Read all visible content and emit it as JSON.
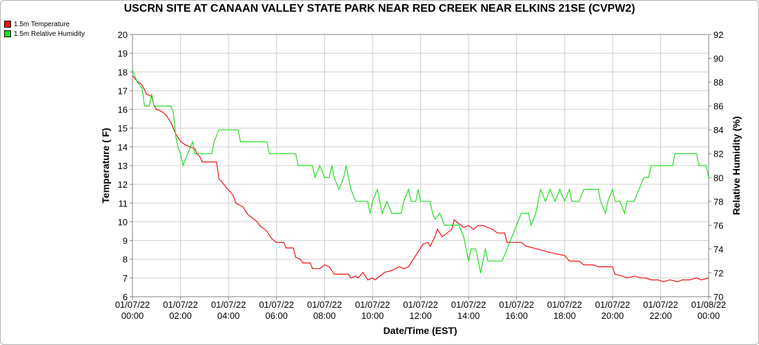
{
  "title": "USCRN SITE AT CANAAN VALLEY STATE PARK NEAR RED CREEK NEAR ELKINS 21SE (CVPW2)",
  "chart_data": {
    "type": "line",
    "title": "USCRN SITE AT CANAAN VALLEY STATE PARK NEAR RED CREEK NEAR ELKINS 21SE (CVPW2)",
    "xlabel": "Date/Time (EST)",
    "ylabel": "Temperature ( F)",
    "y2label": "Relative Humidity (%)",
    "ylim": [
      6,
      20
    ],
    "y2lim": [
      70,
      92
    ],
    "xlim_hours": [
      0,
      24
    ],
    "grid": true,
    "legend_position": "top-left",
    "x_ticks": [
      {
        "date": "01/07/22",
        "time": "00:00"
      },
      {
        "date": "01/07/22",
        "time": "02:00"
      },
      {
        "date": "01/07/22",
        "time": "04:00"
      },
      {
        "date": "01/07/22",
        "time": "06:00"
      },
      {
        "date": "01/07/22",
        "time": "08:00"
      },
      {
        "date": "01/07/22",
        "time": "10:00"
      },
      {
        "date": "01/07/22",
        "time": "12:00"
      },
      {
        "date": "01/07/22",
        "time": "14:00"
      },
      {
        "date": "01/07/22",
        "time": "16:00"
      },
      {
        "date": "01/07/22",
        "time": "18:00"
      },
      {
        "date": "01/07/22",
        "time": "20:00"
      },
      {
        "date": "01/07/22",
        "time": "22:00"
      },
      {
        "date": "01/08/22",
        "time": "00:00"
      }
    ],
    "y_ticks": [
      6,
      7,
      8,
      9,
      10,
      11,
      12,
      13,
      14,
      15,
      16,
      17,
      18,
      19,
      20
    ],
    "y2_ticks": [
      70,
      72,
      74,
      76,
      78,
      80,
      82,
      84,
      86,
      88,
      90,
      92
    ],
    "series": [
      {
        "name": "1.5m Temperature",
        "color": "#ee1111",
        "axis": "left",
        "points": [
          [
            0.0,
            17.8
          ],
          [
            0.2,
            17.5
          ],
          [
            0.4,
            17.3
          ],
          [
            0.6,
            16.8
          ],
          [
            0.8,
            16.7
          ],
          [
            0.9,
            16.2
          ],
          [
            1.0,
            16.0
          ],
          [
            1.2,
            15.9
          ],
          [
            1.4,
            15.7
          ],
          [
            1.6,
            15.3
          ],
          [
            1.8,
            14.7
          ],
          [
            2.0,
            14.3
          ],
          [
            2.2,
            14.1
          ],
          [
            2.4,
            14.0
          ],
          [
            2.6,
            13.9
          ],
          [
            2.7,
            13.6
          ],
          [
            2.8,
            13.5
          ],
          [
            2.9,
            13.2
          ],
          [
            3.2,
            13.2
          ],
          [
            3.5,
            13.2
          ],
          [
            3.6,
            12.3
          ],
          [
            3.8,
            12.0
          ],
          [
            4.0,
            11.7
          ],
          [
            4.2,
            11.4
          ],
          [
            4.3,
            11.0
          ],
          [
            4.6,
            10.8
          ],
          [
            4.8,
            10.4
          ],
          [
            5.0,
            10.2
          ],
          [
            5.2,
            10.0
          ],
          [
            5.3,
            9.8
          ],
          [
            5.6,
            9.5
          ],
          [
            5.8,
            9.1
          ],
          [
            6.0,
            8.9
          ],
          [
            6.3,
            8.9
          ],
          [
            6.4,
            8.6
          ],
          [
            6.7,
            8.6
          ],
          [
            6.8,
            8.1
          ],
          [
            7.0,
            8.0
          ],
          [
            7.1,
            7.8
          ],
          [
            7.4,
            7.8
          ],
          [
            7.5,
            7.5
          ],
          [
            7.8,
            7.5
          ],
          [
            7.9,
            7.6
          ],
          [
            8.0,
            7.7
          ],
          [
            8.2,
            7.6
          ],
          [
            8.4,
            7.2
          ],
          [
            8.8,
            7.2
          ],
          [
            9.0,
            7.2
          ],
          [
            9.1,
            7.0
          ],
          [
            9.3,
            7.1
          ],
          [
            9.4,
            7.0
          ],
          [
            9.6,
            7.3
          ],
          [
            9.8,
            6.9
          ],
          [
            10.0,
            7.0
          ],
          [
            10.1,
            6.9
          ],
          [
            10.3,
            7.1
          ],
          [
            10.5,
            7.3
          ],
          [
            10.8,
            7.4
          ],
          [
            11.1,
            7.6
          ],
          [
            11.3,
            7.5
          ],
          [
            11.5,
            7.6
          ],
          [
            11.7,
            8.0
          ],
          [
            11.9,
            8.4
          ],
          [
            12.1,
            8.8
          ],
          [
            12.3,
            8.9
          ],
          [
            12.4,
            8.7
          ],
          [
            12.6,
            9.2
          ],
          [
            12.7,
            9.6
          ],
          [
            12.9,
            9.2
          ],
          [
            13.1,
            9.4
          ],
          [
            13.3,
            9.6
          ],
          [
            13.4,
            10.1
          ],
          [
            13.6,
            9.9
          ],
          [
            13.8,
            9.7
          ],
          [
            14.0,
            9.8
          ],
          [
            14.2,
            9.6
          ],
          [
            14.4,
            9.8
          ],
          [
            14.6,
            9.8
          ],
          [
            14.8,
            9.7
          ],
          [
            15.0,
            9.6
          ],
          [
            15.2,
            9.4
          ],
          [
            15.5,
            9.4
          ],
          [
            15.6,
            8.9
          ],
          [
            16.2,
            8.9
          ],
          [
            16.4,
            8.7
          ],
          [
            16.7,
            8.6
          ],
          [
            17.0,
            8.5
          ],
          [
            17.3,
            8.4
          ],
          [
            17.6,
            8.3
          ],
          [
            18.0,
            8.2
          ],
          [
            18.2,
            7.9
          ],
          [
            18.6,
            7.9
          ],
          [
            18.8,
            7.7
          ],
          [
            19.2,
            7.7
          ],
          [
            19.4,
            7.6
          ],
          [
            20.0,
            7.6
          ],
          [
            20.1,
            7.2
          ],
          [
            20.4,
            7.1
          ],
          [
            20.6,
            7.0
          ],
          [
            20.9,
            7.1
          ],
          [
            21.2,
            7.0
          ],
          [
            21.4,
            7.0
          ],
          [
            21.6,
            6.9
          ],
          [
            21.9,
            6.9
          ],
          [
            22.1,
            6.8
          ],
          [
            22.4,
            6.9
          ],
          [
            22.7,
            6.8
          ],
          [
            22.9,
            6.9
          ],
          [
            23.2,
            6.9
          ],
          [
            23.5,
            7.0
          ],
          [
            23.7,
            6.9
          ],
          [
            24.0,
            7.0
          ]
        ]
      },
      {
        "name": "1.5m Relative Humidity",
        "color": "#22dd22",
        "axis": "right",
        "points": [
          [
            0.0,
            89.0
          ],
          [
            0.2,
            88.0
          ],
          [
            0.4,
            87.5
          ],
          [
            0.5,
            86.0
          ],
          [
            0.7,
            86.0
          ],
          [
            0.8,
            87.0
          ],
          [
            0.9,
            86.0
          ],
          [
            1.0,
            86.0
          ],
          [
            1.3,
            86.0
          ],
          [
            1.6,
            86.0
          ],
          [
            1.7,
            85.5
          ],
          [
            1.8,
            83.5
          ],
          [
            1.9,
            82.5
          ],
          [
            2.0,
            82.0
          ],
          [
            2.1,
            81.0
          ],
          [
            2.3,
            82.0
          ],
          [
            2.5,
            83.0
          ],
          [
            2.6,
            82.0
          ],
          [
            2.7,
            82.0
          ],
          [
            3.0,
            82.0
          ],
          [
            3.3,
            82.0
          ],
          [
            3.4,
            83.0
          ],
          [
            3.6,
            84.0
          ],
          [
            4.0,
            84.0
          ],
          [
            4.4,
            84.0
          ],
          [
            4.5,
            83.0
          ],
          [
            5.0,
            83.0
          ],
          [
            5.6,
            83.0
          ],
          [
            5.7,
            82.0
          ],
          [
            6.2,
            82.0
          ],
          [
            6.8,
            82.0
          ],
          [
            6.9,
            81.0
          ],
          [
            7.5,
            81.0
          ],
          [
            7.6,
            80.0
          ],
          [
            7.8,
            81.0
          ],
          [
            8.0,
            80.0
          ],
          [
            8.2,
            80.0
          ],
          [
            8.3,
            81.0
          ],
          [
            8.4,
            80.0
          ],
          [
            8.6,
            79.0
          ],
          [
            8.8,
            80.0
          ],
          [
            8.9,
            81.0
          ],
          [
            9.0,
            80.0
          ],
          [
            9.1,
            79.0
          ],
          [
            9.3,
            78.0
          ],
          [
            9.8,
            78.0
          ],
          [
            9.9,
            77.0
          ],
          [
            10.0,
            78.0
          ],
          [
            10.2,
            79.0
          ],
          [
            10.3,
            78.0
          ],
          [
            10.4,
            77.0
          ],
          [
            10.6,
            78.0
          ],
          [
            10.8,
            77.0
          ],
          [
            11.2,
            77.0
          ],
          [
            11.3,
            78.0
          ],
          [
            11.5,
            79.0
          ],
          [
            11.6,
            78.0
          ],
          [
            11.8,
            78.0
          ],
          [
            11.9,
            79.0
          ],
          [
            12.0,
            78.0
          ],
          [
            12.4,
            78.0
          ],
          [
            12.5,
            77.0
          ],
          [
            12.6,
            76.5
          ],
          [
            12.8,
            77.0
          ],
          [
            13.0,
            76.0
          ],
          [
            13.6,
            76.0
          ],
          [
            13.8,
            75.0
          ],
          [
            13.9,
            74.0
          ],
          [
            14.0,
            73.0
          ],
          [
            14.1,
            74.0
          ],
          [
            14.3,
            74.0
          ],
          [
            14.4,
            73.0
          ],
          [
            14.5,
            72.0
          ],
          [
            14.7,
            74.0
          ],
          [
            14.8,
            73.0
          ],
          [
            15.0,
            73.0
          ],
          [
            15.4,
            73.0
          ],
          [
            15.6,
            74.0
          ],
          [
            15.8,
            75.0
          ],
          [
            16.0,
            76.0
          ],
          [
            16.2,
            77.0
          ],
          [
            16.5,
            77.0
          ],
          [
            16.6,
            76.0
          ],
          [
            16.8,
            77.0
          ],
          [
            16.9,
            78.0
          ],
          [
            17.0,
            79.0
          ],
          [
            17.2,
            78.0
          ],
          [
            17.4,
            79.0
          ],
          [
            17.6,
            78.0
          ],
          [
            17.8,
            79.0
          ],
          [
            18.0,
            78.0
          ],
          [
            18.2,
            79.0
          ],
          [
            18.3,
            78.0
          ],
          [
            18.6,
            78.0
          ],
          [
            18.8,
            79.0
          ],
          [
            19.0,
            79.0
          ],
          [
            19.4,
            79.0
          ],
          [
            19.5,
            78.0
          ],
          [
            19.7,
            77.0
          ],
          [
            19.8,
            78.0
          ],
          [
            20.0,
            79.0
          ],
          [
            20.1,
            78.0
          ],
          [
            20.3,
            78.0
          ],
          [
            20.5,
            77.0
          ],
          [
            20.6,
            78.0
          ],
          [
            20.9,
            78.0
          ],
          [
            21.1,
            79.0
          ],
          [
            21.3,
            80.0
          ],
          [
            21.5,
            80.0
          ],
          [
            21.6,
            81.0
          ],
          [
            22.3,
            81.0
          ],
          [
            22.5,
            81.0
          ],
          [
            22.6,
            82.0
          ],
          [
            23.3,
            82.0
          ],
          [
            23.5,
            82.0
          ],
          [
            23.6,
            81.0
          ],
          [
            23.9,
            81.0
          ],
          [
            24.0,
            80.0
          ]
        ]
      }
    ]
  }
}
